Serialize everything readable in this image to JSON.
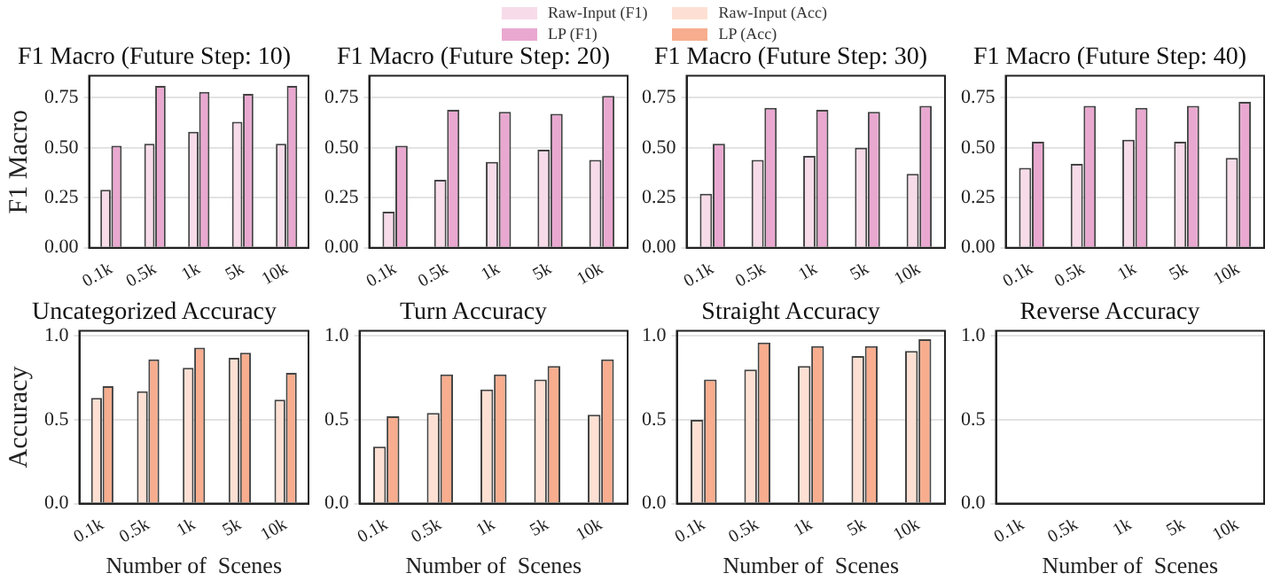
{
  "chart_data": [
    {
      "type": "bar",
      "title": "F1 Macro (Future Step: 10)",
      "ylabel": "F1 Macro",
      "categories": [
        "0.1k",
        "0.5k",
        "1k",
        "5k",
        "10k"
      ],
      "ylim": [
        0,
        0.86
      ],
      "yticks": [
        {
          "value": 0,
          "label": "0.00"
        },
        0.25,
        {
          "value": 0.5,
          "label": "0.50"
        },
        0.75
      ],
      "grid": "y",
      "legend": "top",
      "series": [
        {
          "name": "Raw-Input (F1)",
          "color": "#f7dbe9",
          "values": [
            0.29,
            0.52,
            0.58,
            0.63,
            0.52
          ]
        },
        {
          "name": "LP (F1)",
          "color": "#e9a8d0",
          "values": [
            0.51,
            0.81,
            0.78,
            0.77,
            0.81
          ]
        }
      ]
    },
    {
      "type": "bar",
      "title": "F1 Macro (Future Step: 20)",
      "categories": [
        "0.1k",
        "0.5k",
        "1k",
        "5k",
        "10k"
      ],
      "ylim": [
        0,
        0.86
      ],
      "yticks": [
        {
          "value": 0,
          "label": "0.00"
        },
        0.25,
        {
          "value": 0.5,
          "label": "0.50"
        },
        0.75
      ],
      "grid": "y",
      "series": [
        {
          "color": "#f7dbe9",
          "values": [
            0.18,
            0.34,
            0.43,
            0.49,
            0.44
          ]
        },
        {
          "color": "#e9a8d0",
          "values": [
            0.51,
            0.69,
            0.68,
            0.67,
            0.76
          ]
        }
      ]
    },
    {
      "type": "bar",
      "title": "F1 Macro (Future Step: 30)",
      "categories": [
        "0.1k",
        "0.5k",
        "1k",
        "5k",
        "10k"
      ],
      "ylim": [
        0,
        0.86
      ],
      "yticks": [
        {
          "value": 0,
          "label": "0.00"
        },
        0.25,
        {
          "value": 0.5,
          "label": "0.50"
        },
        0.75
      ],
      "grid": "y",
      "series": [
        {
          "color": "#f7dbe9",
          "values": [
            0.27,
            0.44,
            0.46,
            0.5,
            0.37
          ]
        },
        {
          "color": "#e9a8d0",
          "values": [
            0.52,
            0.7,
            0.69,
            0.68,
            0.71
          ]
        }
      ]
    },
    {
      "type": "bar",
      "title": "F1 Macro (Future Step: 40)",
      "categories": [
        "0.1k",
        "0.5k",
        "1k",
        "5k",
        "10k"
      ],
      "ylim": [
        0,
        0.86
      ],
      "yticks": [
        {
          "value": 0,
          "label": "0.00"
        },
        0.25,
        {
          "value": 0.5,
          "label": "0.50"
        },
        0.75
      ],
      "grid": "y",
      "series": [
        {
          "color": "#f7dbe9",
          "values": [
            0.4,
            0.42,
            0.54,
            0.53,
            0.45
          ]
        },
        {
          "color": "#e9a8d0",
          "values": [
            0.53,
            0.71,
            0.7,
            0.71,
            0.73
          ]
        }
      ]
    },
    {
      "type": "bar",
      "title": "Uncategorized Accuracy",
      "xlabel": "Number of  Scenes",
      "ylabel": "Accuracy",
      "categories": [
        "0.1k",
        "0.5k",
        "1k",
        "5k",
        "10k"
      ],
      "ylim": [
        0,
        1.03
      ],
      "yticks": [
        {
          "value": 0,
          "label": "0.0"
        },
        0.5,
        {
          "value": 1,
          "label": "1.0"
        }
      ],
      "grid": "y",
      "legend": "top",
      "series": [
        {
          "name": "Raw-Input (Acc)",
          "color": "#fde0d3",
          "values": [
            0.63,
            0.67,
            0.81,
            0.87,
            0.62
          ]
        },
        {
          "name": "LP (Acc)",
          "color": "#f7ad8e",
          "values": [
            0.7,
            0.86,
            0.93,
            0.9,
            0.78
          ]
        }
      ]
    },
    {
      "type": "bar",
      "title": "Turn Accuracy",
      "xlabel": "Number of  Scenes",
      "categories": [
        "0.1k",
        "0.5k",
        "1k",
        "5k",
        "10k"
      ],
      "ylim": [
        0,
        1.03
      ],
      "yticks": [
        {
          "value": 0,
          "label": "0.0"
        },
        0.5,
        {
          "value": 1,
          "label": "1.0"
        }
      ],
      "grid": "y",
      "series": [
        {
          "color": "#fde0d3",
          "values": [
            0.34,
            0.54,
            0.68,
            0.74,
            0.53
          ]
        },
        {
          "color": "#f7ad8e",
          "values": [
            0.52,
            0.77,
            0.77,
            0.82,
            0.86
          ]
        }
      ]
    },
    {
      "type": "bar",
      "title": "Straight Accuracy",
      "xlabel": "Number of  Scenes",
      "categories": [
        "0.1k",
        "0.5k",
        "1k",
        "5k",
        "10k"
      ],
      "ylim": [
        0,
        1.03
      ],
      "yticks": [
        {
          "value": 0,
          "label": "0.0"
        },
        0.5,
        {
          "value": 1,
          "label": "1.0"
        }
      ],
      "grid": "y",
      "series": [
        {
          "color": "#fde0d3",
          "values": [
            0.5,
            0.8,
            0.82,
            0.88,
            0.91
          ]
        },
        {
          "color": "#f7ad8e",
          "values": [
            0.74,
            0.96,
            0.94,
            0.94,
            0.98
          ]
        }
      ]
    },
    {
      "type": "bar",
      "title": "Reverse Accuracy",
      "xlabel": "Number of  Scenes",
      "categories": [
        "0.1k",
        "0.5k",
        "1k",
        "5k",
        "10k"
      ],
      "ylim": [
        0,
        1.03
      ],
      "yticks": [
        {
          "value": 0,
          "label": "0.0"
        },
        0.5,
        {
          "value": 1,
          "label": "1.0"
        }
      ],
      "grid": "y",
      "series": [
        {
          "color": "#fde0d3",
          "values": [
            null,
            null,
            null,
            null,
            null
          ]
        },
        {
          "color": "#f7ad8e",
          "values": [
            null,
            null,
            null,
            null,
            null
          ]
        }
      ]
    }
  ]
}
